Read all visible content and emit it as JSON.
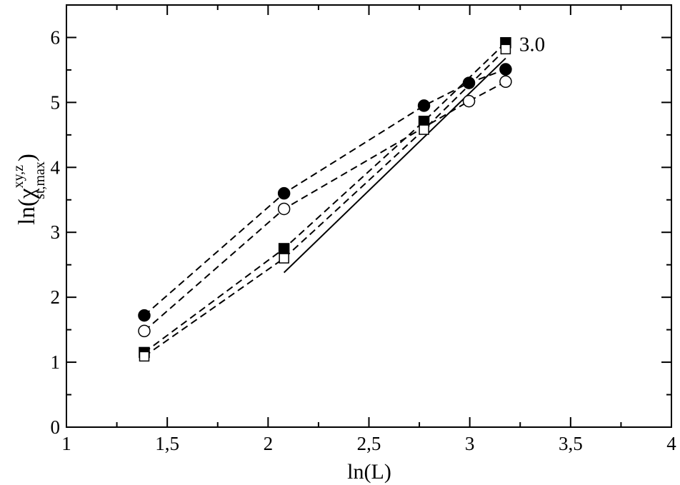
{
  "chart_data": {
    "type": "line",
    "title": "",
    "xlabel": "ln(L)",
    "ylabel": {
      "prefix": "ln(χ",
      "superscript": "xy,z",
      "subscript": "st,max",
      "suffix": ")"
    },
    "xlim": [
      1,
      4
    ],
    "ylim": [
      0,
      6.5
    ],
    "xticks": [
      1,
      1.5,
      2,
      2.5,
      3,
      3.5,
      4
    ],
    "xtick_labels": [
      "1",
      "1,5",
      "2",
      "2,5",
      "3",
      "3,5",
      "4"
    ],
    "yticks": [
      0,
      1,
      2,
      3,
      4,
      5,
      6
    ],
    "ytick_labels": [
      "0",
      "1",
      "2",
      "3",
      "4",
      "5",
      "6"
    ],
    "grid": false,
    "series": [
      {
        "marker": "filled-circle",
        "line": "dashed",
        "x": [
          1.386,
          2.079,
          2.773,
          2.996,
          3.178
        ],
        "y": [
          1.72,
          3.6,
          4.95,
          5.3,
          5.51
        ]
      },
      {
        "marker": "open-circle",
        "line": "dashed",
        "x": [
          1.386,
          2.079,
          2.996,
          3.178
        ],
        "y": [
          1.48,
          3.36,
          5.02,
          5.32
        ]
      },
      {
        "marker": "filled-square",
        "line": "dashed",
        "x": [
          1.386,
          2.079,
          2.773,
          3.178
        ],
        "y": [
          1.15,
          2.75,
          4.71,
          5.92
        ]
      },
      {
        "marker": "open-square",
        "line": "dashed",
        "x": [
          1.386,
          2.079,
          2.773,
          3.178
        ],
        "y": [
          1.09,
          2.6,
          4.58,
          5.82
        ]
      }
    ],
    "reference_line": {
      "line": "solid",
      "x": [
        2.079,
        3.178
      ],
      "y": [
        2.38,
        5.68
      ]
    },
    "annotations": [
      {
        "text": "3.0",
        "x": 3.245,
        "y": 5.9
      }
    ]
  }
}
